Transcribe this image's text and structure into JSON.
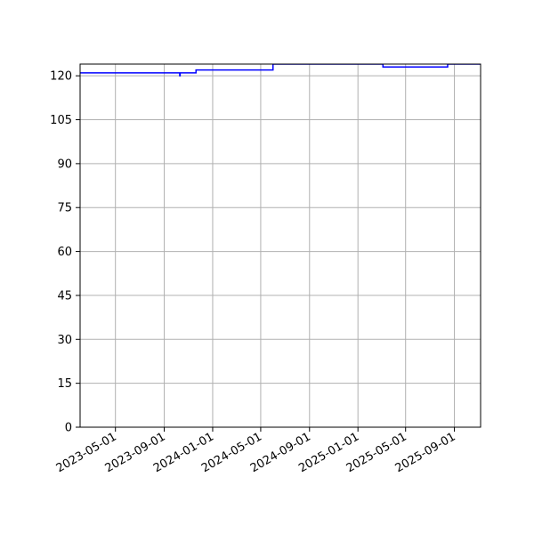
{
  "chart_data": {
    "type": "line",
    "title": "",
    "xlabel": "",
    "ylabel": "",
    "x_axis": "date",
    "xlim": [
      "2023-02-01",
      "2025-11-06"
    ],
    "ylim": [
      0,
      124
    ],
    "grid": true,
    "legend": "none",
    "line_color": "#0000ff",
    "grid_color": "#b0b0b0",
    "x_ticks": [
      "2023-05-01",
      "2023-09-01",
      "2024-01-01",
      "2024-05-01",
      "2024-09-01",
      "2025-01-01",
      "2025-05-01",
      "2025-09-01"
    ],
    "y_ticks": [
      0,
      15,
      30,
      45,
      60,
      75,
      90,
      105,
      120
    ],
    "series": [
      {
        "step": "post",
        "points": [
          [
            "2023-02-01",
            121
          ],
          [
            "2023-10-10",
            120
          ],
          [
            "2023-10-11",
            121
          ],
          [
            "2023-11-20",
            122
          ],
          [
            "2024-06-01",
            124
          ],
          [
            "2025-03-05",
            123
          ],
          [
            "2025-08-15",
            124
          ]
        ]
      }
    ]
  }
}
